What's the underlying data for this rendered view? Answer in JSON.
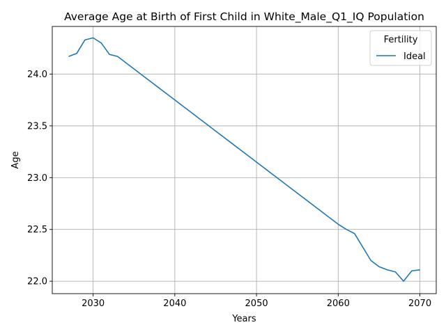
{
  "chart_data": {
    "type": "line",
    "title": "Average Age at Birth of First Child in White_Male_Q1_IQ Population",
    "xlabel": "Years",
    "ylabel": "Age",
    "xlim": [
      2025,
      2072
    ],
    "ylim": [
      21.88,
      24.46
    ],
    "xticks": [
      2030,
      2040,
      2050,
      2060,
      2070
    ],
    "yticks": [
      22.0,
      22.5,
      23.0,
      23.5,
      24.0
    ],
    "grid": true,
    "legend": {
      "title": "Fertility",
      "placement": "top-right"
    },
    "series": [
      {
        "name": "Ideal",
        "color": "#1f77b4",
        "x": [
          2027,
          2028,
          2029,
          2030,
          2031,
          2032,
          2033,
          2034,
          2035,
          2036,
          2037,
          2038,
          2039,
          2040,
          2041,
          2042,
          2043,
          2044,
          2045,
          2046,
          2047,
          2048,
          2049,
          2050,
          2051,
          2052,
          2053,
          2054,
          2055,
          2056,
          2057,
          2058,
          2059,
          2060,
          2061,
          2062,
          2063,
          2064,
          2065,
          2066,
          2067,
          2068,
          2069,
          2070
        ],
        "values": [
          24.17,
          24.2,
          24.33,
          24.35,
          24.3,
          24.19,
          24.17,
          24.11,
          24.05,
          23.99,
          23.93,
          23.87,
          23.81,
          23.75,
          23.69,
          23.63,
          23.57,
          23.51,
          23.45,
          23.39,
          23.33,
          23.27,
          23.21,
          23.15,
          23.09,
          23.03,
          22.97,
          22.91,
          22.85,
          22.79,
          22.73,
          22.67,
          22.61,
          22.55,
          22.5,
          22.46,
          22.33,
          22.2,
          22.14,
          22.11,
          22.09,
          22.0,
          22.1,
          22.11
        ]
      }
    ]
  }
}
